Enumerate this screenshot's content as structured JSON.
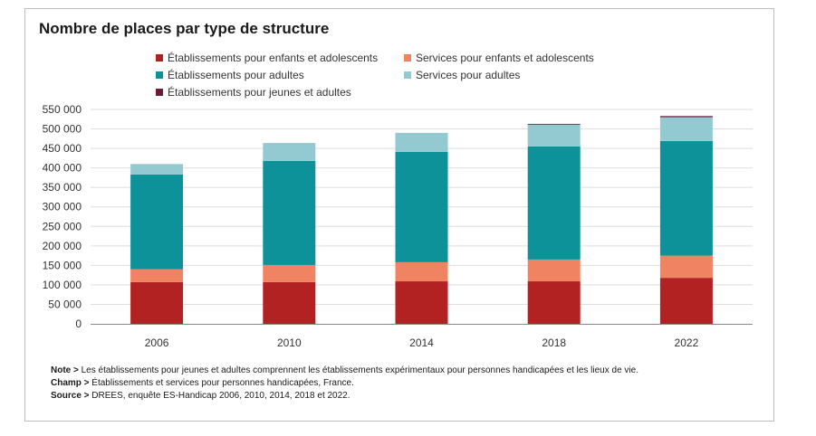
{
  "chart_data": {
    "type": "bar",
    "stacked": true,
    "title": "Nombre de places par type de structure",
    "categories": [
      "2006",
      "2010",
      "2014",
      "2018",
      "2022"
    ],
    "series": [
      {
        "name": "Établissements pour enfants et adolescents",
        "color": "#b22222",
        "values": [
          107000,
          107000,
          109000,
          109000,
          118000
        ]
      },
      {
        "name": "Services pour enfants et adolescents",
        "color": "#f08462",
        "values": [
          33000,
          44000,
          49000,
          56000,
          57000
        ]
      },
      {
        "name": "Établissements pour adultes",
        "color": "#0e9299",
        "values": [
          243000,
          267000,
          283000,
          290000,
          294000
        ]
      },
      {
        "name": "Services pour adultes",
        "color": "#93cad1",
        "values": [
          27000,
          46000,
          49000,
          56000,
          61000
        ]
      },
      {
        "name": "Établissements pour jeunes et adultes",
        "color": "#6d1a3a",
        "values": [
          0,
          0,
          0,
          2000,
          3000
        ]
      }
    ],
    "ylim": [
      0,
      550000
    ],
    "yticks": [
      0,
      50000,
      100000,
      150000,
      200000,
      250000,
      300000,
      350000,
      400000,
      450000,
      500000,
      550000
    ],
    "ytick_labels": [
      "0",
      "50 000",
      "100 000",
      "150 000",
      "200 000",
      "250 000",
      "300 000",
      "350 000",
      "400 000",
      "450 000",
      "500 000",
      "550 000"
    ],
    "grid": true,
    "legend_position": "top"
  },
  "footnotes": {
    "note_label": "Note >",
    "note_text": " Les établissements pour jeunes et adultes comprennent les établissements expérimentaux pour personnes handicapées et les lieux de vie.",
    "champ_label": "Champ >",
    "champ_text": " Établissements et services pour personnes handicapées, France.",
    "source_label": "Source >",
    "source_text": " DREES, enquête ES-Handicap 2006, 2010, 2014, 2018 et 2022."
  }
}
